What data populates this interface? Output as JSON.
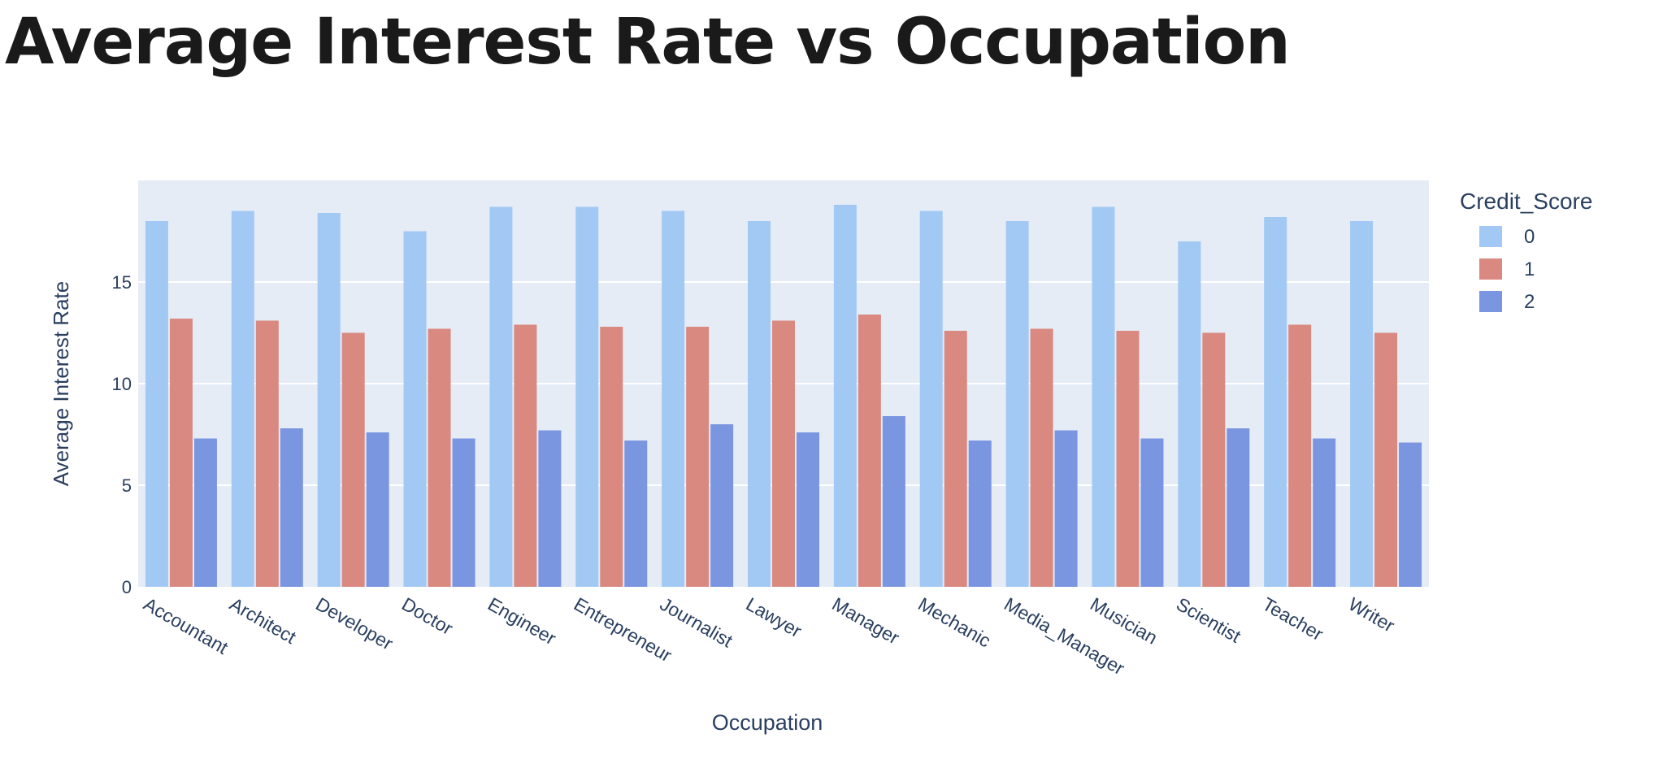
{
  "page": {
    "title": "Average Interest Rate vs Occupation"
  },
  "chart_data": {
    "type": "bar",
    "xlabel": "Occupation",
    "ylabel": "Average Interest Rate",
    "ylim": [
      0,
      20
    ],
    "yticks": [
      0,
      5,
      10,
      15
    ],
    "grid": true,
    "legend_title": "Credit_Score",
    "legend_position": "right",
    "categories": [
      "Accountant",
      "Architect",
      "Developer",
      "Doctor",
      "Engineer",
      "Entrepreneur",
      "Journalist",
      "Lawyer",
      "Manager",
      "Mechanic",
      "Media_Manager",
      "Musician",
      "Scientist",
      "Teacher",
      "Writer"
    ],
    "series": [
      {
        "name": "0",
        "color": "#a1c9f4",
        "values": [
          18.0,
          18.5,
          18.4,
          17.5,
          18.7,
          18.7,
          18.5,
          18.0,
          18.8,
          18.5,
          18.0,
          18.7,
          17.0,
          18.2,
          18.0
        ]
      },
      {
        "name": "1",
        "color": "#d98980",
        "values": [
          13.2,
          13.1,
          12.5,
          12.7,
          12.9,
          12.8,
          12.8,
          13.1,
          13.4,
          12.6,
          12.7,
          12.6,
          12.5,
          12.9,
          12.5
        ]
      },
      {
        "name": "2",
        "color": "#7b96e0",
        "values": [
          7.3,
          7.8,
          7.6,
          7.3,
          7.7,
          7.2,
          8.0,
          7.6,
          8.4,
          7.2,
          7.7,
          7.3,
          7.8,
          7.3,
          7.1
        ]
      }
    ],
    "colors": {
      "plot_background": "#e5ecf6",
      "gridline": "#ffffff",
      "text": "#2a3f5f"
    }
  }
}
